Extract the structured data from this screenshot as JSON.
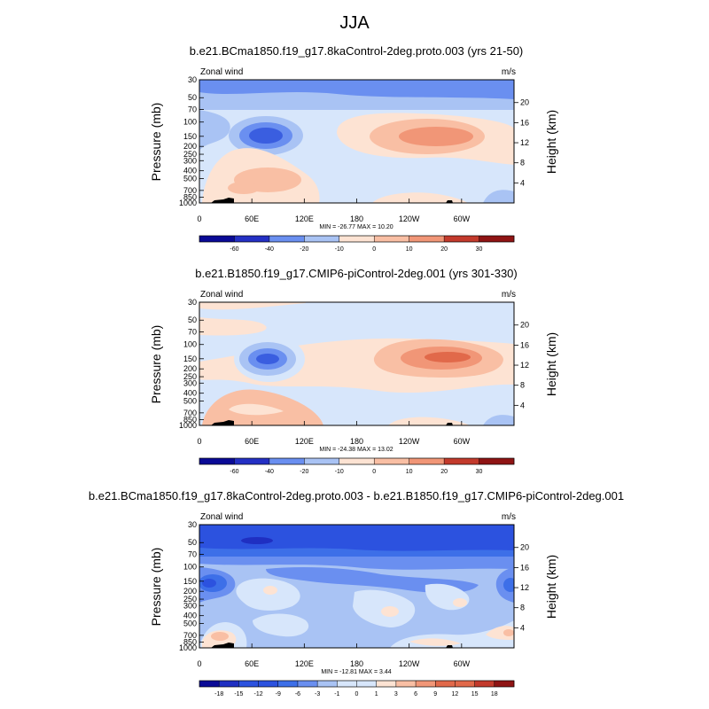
{
  "figure": {
    "title": "JJA"
  },
  "colors": {
    "abs": [
      "#0a0a96",
      "#2430c4",
      "#3a5ee0",
      "#6a8ff0",
      "#a9c3f4",
      "#d7e6fb",
      "#fde3d3",
      "#f9bfa4",
      "#f19677",
      "#e1694a",
      "#c33a2c",
      "#8f1414"
    ],
    "diff": [
      "#0a0a96",
      "#1f2fc2",
      "#2c52df",
      "#3d6fe8",
      "#6a8ff0",
      "#a9c3f4",
      "#d7e6fb",
      "#fde3d3",
      "#f9bfa4",
      "#f19677",
      "#e1694a",
      "#c33a2c",
      "#8f1414"
    ]
  },
  "chart_data": [
    {
      "type": "heatmap",
      "title": "b.e21.BCma1850.f19_g17.8kaControl-2deg.proto.003 (yrs 21-50)",
      "left_label": "Zonal wind",
      "units": "m/s",
      "xlabel": "",
      "ylabel": "Pressure (mb)",
      "ylabel_right": "Height (km)",
      "xticks": [
        "0",
        "60E",
        "120E",
        "180",
        "120W",
        "60W"
      ],
      "yticks": [
        "30",
        "50",
        "70",
        "100",
        "150",
        "200",
        "250",
        "300",
        "400",
        "500",
        "700",
        "850",
        "1000"
      ],
      "height_ticks": [
        "20",
        "16",
        "12",
        "8",
        "4"
      ],
      "stats": "MIN = -26.77  MAX =  10.20",
      "colorbar_labels": [
        "-60",
        "-40",
        "-20",
        "-10",
        "0",
        "10",
        "20",
        "30"
      ],
      "value_range": [
        -26.77,
        10.2
      ]
    },
    {
      "type": "heatmap",
      "title": "b.e21.B1850.f19_g17.CMIP6-piControl-2deg.001 (yrs 301-330)",
      "left_label": "Zonal wind",
      "units": "m/s",
      "xlabel": "",
      "ylabel": "Pressure (mb)",
      "ylabel_right": "Height (km)",
      "xticks": [
        "0",
        "60E",
        "120E",
        "180",
        "120W",
        "60W"
      ],
      "yticks": [
        "30",
        "50",
        "70",
        "100",
        "150",
        "200",
        "250",
        "300",
        "400",
        "500",
        "700",
        "850",
        "1000"
      ],
      "height_ticks": [
        "20",
        "16",
        "12",
        "8",
        "4"
      ],
      "stats": "MIN = -24.38  MAX =  13.02",
      "colorbar_labels": [
        "-60",
        "-40",
        "-20",
        "-10",
        "0",
        "10",
        "20",
        "30"
      ],
      "value_range": [
        -24.38,
        13.02
      ]
    },
    {
      "type": "heatmap",
      "title": "b.e21.BCma1850.f19_g17.8kaControl-2deg.proto.003 - b.e21.B1850.f19_g17.CMIP6-piControl-2deg.001",
      "left_label": "Zonal wind",
      "units": "m/s",
      "xlabel": "",
      "ylabel": "Pressure (mb)",
      "ylabel_right": "Height (km)",
      "xticks": [
        "0",
        "60E",
        "120E",
        "180",
        "120W",
        "60W"
      ],
      "yticks": [
        "30",
        "50",
        "70",
        "100",
        "150",
        "200",
        "250",
        "300",
        "400",
        "500",
        "700",
        "850",
        "1000"
      ],
      "height_ticks": [
        "20",
        "16",
        "12",
        "8",
        "4"
      ],
      "stats": "MIN = -12.81  MAX =   3.44",
      "colorbar_labels": [
        "-18",
        "-15",
        "-12",
        "-9",
        "-6",
        "-3",
        "-1",
        "0",
        "1",
        "3",
        "6",
        "9",
        "12",
        "15",
        "18"
      ],
      "value_range": [
        -12.81,
        3.44
      ]
    }
  ]
}
